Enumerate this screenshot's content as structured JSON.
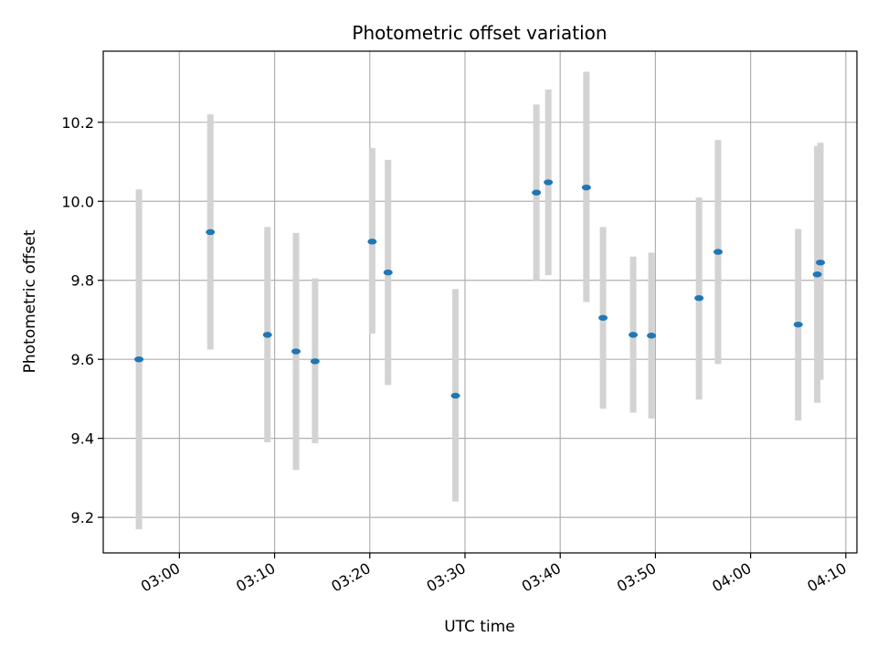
{
  "chart_data": {
    "type": "scatter",
    "title": "Photometric offset variation",
    "xlabel": "UTC time",
    "ylabel": "Photometric offset",
    "x_tick_labels": [
      "03:00",
      "03:10",
      "03:20",
      "03:30",
      "03:40",
      "03:50",
      "04:00",
      "04:10"
    ],
    "x_ticks": [
      "03:00",
      "03:10",
      "03:20",
      "03:30",
      "03:40",
      "03:50",
      "04:00",
      "04:10"
    ],
    "y_ticks": [
      9.2,
      9.4,
      9.6,
      9.8,
      10.0,
      10.2
    ],
    "y_tick_labels": [
      "9.2",
      "9.4",
      "9.6",
      "9.8",
      "10.0",
      "10.2"
    ],
    "xlim": [
      "02:52:00",
      "04:11:10"
    ],
    "ylim": [
      9.11,
      10.38
    ],
    "grid": true,
    "legend": "none",
    "marker_color": "#1f77b4",
    "errorbar_color": "#d3d3d3",
    "points": [
      {
        "x": "02:55:45",
        "y": 9.6,
        "ymin": 9.17,
        "ymax": 10.03
      },
      {
        "x": "03:03:15",
        "y": 9.922,
        "ymin": 9.625,
        "ymax": 10.22
      },
      {
        "x": "03:09:15",
        "y": 9.662,
        "ymin": 9.39,
        "ymax": 9.935
      },
      {
        "x": "03:12:15",
        "y": 9.62,
        "ymin": 9.32,
        "ymax": 9.92
      },
      {
        "x": "03:14:15",
        "y": 9.595,
        "ymin": 9.388,
        "ymax": 9.805
      },
      {
        "x": "03:20:15",
        "y": 9.898,
        "ymin": 9.665,
        "ymax": 10.135
      },
      {
        "x": "03:21:55",
        "y": 9.82,
        "ymin": 9.535,
        "ymax": 10.105
      },
      {
        "x": "03:29:00",
        "y": 9.508,
        "ymin": 9.24,
        "ymax": 9.778
      },
      {
        "x": "03:37:30",
        "y": 10.022,
        "ymin": 9.8,
        "ymax": 10.245
      },
      {
        "x": "03:38:45",
        "y": 10.048,
        "ymin": 9.813,
        "ymax": 10.283
      },
      {
        "x": "03:42:45",
        "y": 10.035,
        "ymin": 9.745,
        "ymax": 10.328
      },
      {
        "x": "03:44:30",
        "y": 9.705,
        "ymin": 9.475,
        "ymax": 9.935
      },
      {
        "x": "03:47:40",
        "y": 9.662,
        "ymin": 9.465,
        "ymax": 9.86
      },
      {
        "x": "03:49:35",
        "y": 9.66,
        "ymin": 9.45,
        "ymax": 9.87
      },
      {
        "x": "03:54:35",
        "y": 9.755,
        "ymin": 9.498,
        "ymax": 10.01
      },
      {
        "x": "03:56:35",
        "y": 9.872,
        "ymin": 9.588,
        "ymax": 10.155
      },
      {
        "x": "04:05:00",
        "y": 9.688,
        "ymin": 9.445,
        "ymax": 9.93
      },
      {
        "x": "04:07:00",
        "y": 9.815,
        "ymin": 9.49,
        "ymax": 10.14
      },
      {
        "x": "04:07:20",
        "y": 9.845,
        "ymin": 9.548,
        "ymax": 10.148
      }
    ]
  }
}
